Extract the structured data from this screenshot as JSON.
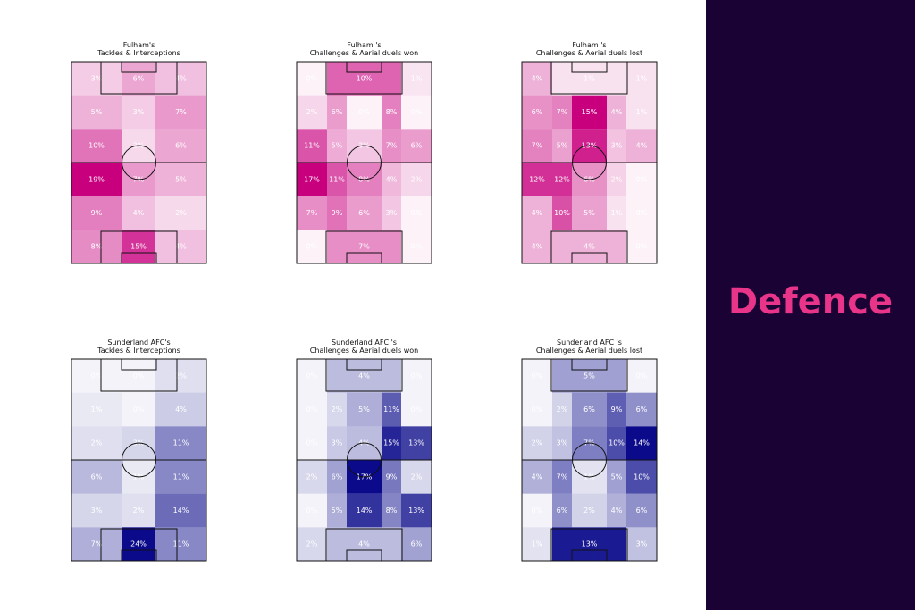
{
  "heading": "Defence",
  "chart_data": [
    {
      "type": "heatmap",
      "title": "Fulham's",
      "subtitle": "Tackles & Interceptions",
      "color": "#c8007e",
      "values": [
        [
          3,
          6,
          4
        ],
        [
          5,
          3,
          7
        ],
        [
          10,
          2,
          6
        ],
        [
          19,
          7,
          5
        ],
        [
          9,
          4,
          2
        ],
        [
          8,
          15,
          4
        ]
      ],
      "value_labels": [
        [
          "3%",
          "6%",
          "4%"
        ],
        [
          "5%",
          "3%",
          "7%"
        ],
        [
          "10%",
          "2%",
          "6%"
        ],
        [
          "19%",
          "7%",
          "5%"
        ],
        [
          "9%",
          "4%",
          "2%"
        ],
        [
          "8%",
          "15%",
          "4%"
        ]
      ]
    },
    {
      "type": "heatmap",
      "title": "Fulham 's",
      "subtitle": "Challenges & Aerial duels won",
      "color": "#c8007e",
      "values": [
        [
          0,
          10,
          1
        ],
        [
          2,
          6,
          0,
          8,
          0
        ],
        [
          11,
          5,
          3,
          7,
          6
        ],
        [
          17,
          11,
          8,
          4,
          2
        ],
        [
          7,
          9,
          6,
          3,
          0
        ],
        [
          0,
          7,
          0
        ]
      ],
      "value_labels": [
        [
          "0%",
          "10%",
          "1%"
        ],
        [
          "2%",
          "6%",
          "0%",
          "8%",
          "0%"
        ],
        [
          "11%",
          "5%",
          "3%",
          "7%",
          "6%"
        ],
        [
          "17%",
          "11%",
          "8%",
          "4%",
          "2%"
        ],
        [
          "7%",
          "9%",
          "6%",
          "3%",
          "0%"
        ],
        [
          "0%",
          "7%",
          "0%"
        ]
      ]
    },
    {
      "type": "heatmap",
      "title": "Fulham 's",
      "subtitle": "Challenges & Aerial duels lost",
      "color": "#c8007e",
      "values": [
        [
          4,
          1,
          1
        ],
        [
          6,
          7,
          15,
          4,
          1
        ],
        [
          7,
          5,
          13,
          3,
          4
        ],
        [
          12,
          12,
          6,
          2,
          0
        ],
        [
          4,
          10,
          5,
          1,
          0
        ],
        [
          4,
          4,
          0
        ]
      ],
      "value_labels": [
        [
          "4%",
          "1%",
          "1%"
        ],
        [
          "6%",
          "7%",
          "15%",
          "4%",
          "1%"
        ],
        [
          "7%",
          "5%",
          "13%",
          "3%",
          "4%"
        ],
        [
          "12%",
          "12%",
          "6%",
          "2%",
          "0%"
        ],
        [
          "4%",
          "10%",
          "5%",
          "1%",
          "0%"
        ],
        [
          "4%",
          "4%",
          "0%"
        ]
      ]
    },
    {
      "type": "heatmap",
      "title": "Sunderland AFC's",
      "subtitle": "Tackles & Interceptions",
      "color": "#0a0a8a",
      "values": [
        [
          0,
          0,
          2
        ],
        [
          1,
          0,
          4
        ],
        [
          2,
          3,
          11
        ],
        [
          6,
          1,
          11
        ],
        [
          3,
          2,
          14
        ],
        [
          7,
          24,
          11
        ]
      ],
      "value_labels": [
        [
          "0%",
          "0%",
          "2%"
        ],
        [
          "1%",
          "0%",
          "4%"
        ],
        [
          "2%",
          "3%",
          "11%"
        ],
        [
          "6%",
          "1%",
          "11%"
        ],
        [
          "3%",
          "2%",
          "14%"
        ],
        [
          "7%",
          "24%",
          "11%"
        ]
      ]
    },
    {
      "type": "heatmap",
      "title": "Sunderland AFC 's",
      "subtitle": "Challenges & Aerial duels won",
      "color": "#0a0a8a",
      "values": [
        [
          0,
          4,
          0
        ],
        [
          0,
          2,
          5,
          11,
          0
        ],
        [
          0,
          3,
          4,
          15,
          13
        ],
        [
          2,
          6,
          17,
          9,
          2
        ],
        [
          0,
          5,
          14,
          8,
          13
        ],
        [
          2,
          4,
          6
        ]
      ],
      "value_labels": [
        [
          "0%",
          "4%",
          "0%"
        ],
        [
          "0%",
          "2%",
          "5%",
          "11%",
          "0%"
        ],
        [
          "0%",
          "3%",
          "4%",
          "15%",
          "13%"
        ],
        [
          "2%",
          "6%",
          "17%",
          "9%",
          "2%"
        ],
        [
          "0%",
          "5%",
          "14%",
          "8%",
          "13%"
        ],
        [
          "2%",
          "4%",
          "6%"
        ]
      ]
    },
    {
      "type": "heatmap",
      "title": "Sunderland AFC 's",
      "subtitle": "Challenges & Aerial duels lost",
      "color": "#0a0a8a",
      "values": [
        [
          0,
          5,
          0
        ],
        [
          0,
          2,
          6,
          9,
          6
        ],
        [
          2,
          3,
          7,
          10,
          14
        ],
        [
          4,
          7,
          1,
          5,
          10
        ],
        [
          0,
          6,
          2,
          4,
          6
        ],
        [
          1,
          13,
          3
        ]
      ],
      "value_labels": [
        [
          "0%",
          "5%",
          "0%"
        ],
        [
          "0%",
          "2%",
          "6%",
          "9%",
          "6%"
        ],
        [
          "2%",
          "3%",
          "7%",
          "10%",
          "14%"
        ],
        [
          "4%",
          "7%",
          "1%",
          "5%",
          "10%"
        ],
        [
          "0%",
          "6%",
          "2%",
          "4%",
          "6%"
        ],
        [
          "1%",
          "13%",
          "3%"
        ]
      ]
    }
  ]
}
